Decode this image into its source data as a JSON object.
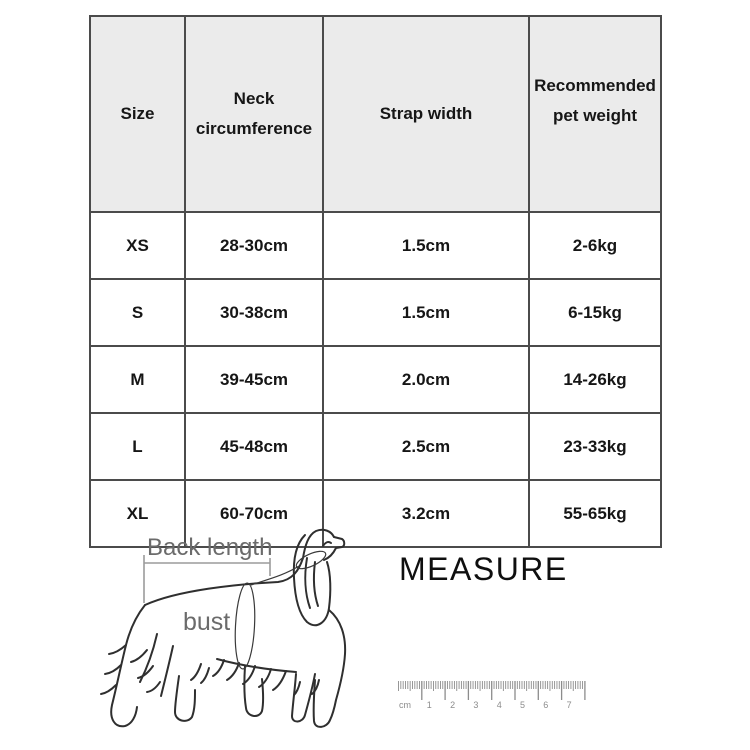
{
  "size_table": {
    "columns": [
      "Size",
      "Neck circumference",
      "Strap width",
      "Recommended pet weight"
    ],
    "rows": [
      {
        "size": "XS",
        "neck_circumference": "28-30cm",
        "strap_width": "1.5cm",
        "pet_weight": "2-6kg"
      },
      {
        "size": "S",
        "neck_circumference": "30-38cm",
        "strap_width": "1.5cm",
        "pet_weight": "6-15kg"
      },
      {
        "size": "M",
        "neck_circumference": "39-45cm",
        "strap_width": "2.0cm",
        "pet_weight": "14-26kg"
      },
      {
        "size": "L",
        "neck_circumference": "45-48cm",
        "strap_width": "2.5cm",
        "pet_weight": "23-33kg"
      },
      {
        "size": "XL",
        "neck_circumference": "60-70cm",
        "strap_width": "3.2cm",
        "pet_weight": "55-65kg"
      }
    ]
  },
  "measure_diagram": {
    "back_length_label": "Back length",
    "bust_label": "bust",
    "title": "MEASURE",
    "dog_icon": "cavalier-spaniel-line-drawing"
  },
  "ruler": {
    "unit_label": "cm",
    "numbers": [
      "1",
      "2",
      "3",
      "4",
      "5",
      "6",
      "7"
    ],
    "color": "#8c8c8c"
  },
  "colors": {
    "table_border": "#4b4b4b",
    "header_background": "#ebebeb",
    "table_text": "#161616",
    "label_gray": "#6b6b6b",
    "sketch_line": "#2f2f2f"
  }
}
